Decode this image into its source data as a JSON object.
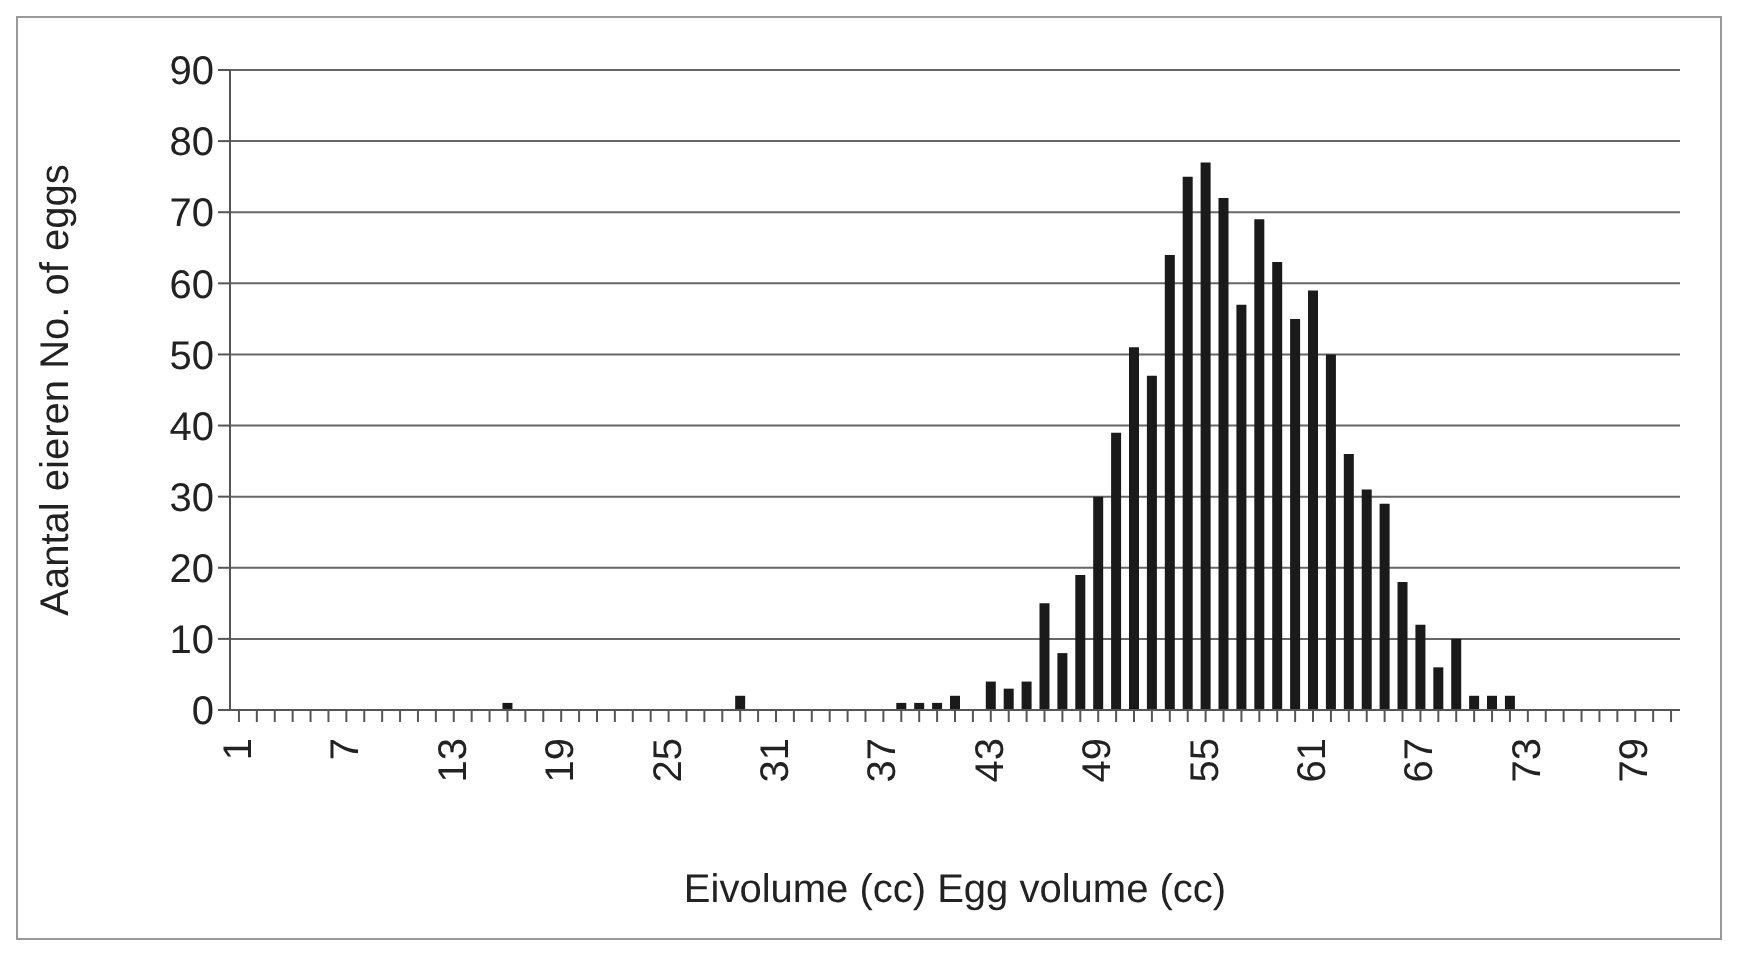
{
  "chart_data": {
    "type": "bar",
    "xlabel": "Eivolume (cc)  Egg volume (cc)",
    "ylabel": "Aantal eieren  No. of eggs",
    "categories": [
      "1",
      null,
      null,
      null,
      null,
      null,
      "7",
      null,
      null,
      null,
      null,
      null,
      "13",
      null,
      null,
      null,
      null,
      null,
      "19",
      null,
      null,
      null,
      null,
      null,
      "25",
      null,
      null,
      null,
      null,
      null,
      "31",
      null,
      null,
      null,
      null,
      null,
      "37",
      null,
      null,
      null,
      null,
      null,
      "43",
      null,
      null,
      null,
      null,
      null,
      "49",
      null,
      null,
      null,
      null,
      null,
      "55",
      null,
      null,
      null,
      null,
      null,
      "61",
      null,
      null,
      null,
      null,
      null,
      "67",
      null,
      null,
      null,
      null,
      null,
      "73",
      null,
      null,
      null,
      null,
      null,
      "79",
      null,
      null
    ],
    "values": [
      0,
      0,
      0,
      0,
      0,
      0,
      0,
      0,
      0,
      0,
      0,
      0,
      0,
      0,
      0,
      1,
      0,
      0,
      0,
      0,
      0,
      0,
      0,
      0,
      0,
      0,
      0,
      0,
      2,
      0,
      0,
      0,
      0,
      0,
      0,
      0,
      0,
      1,
      1,
      1,
      2,
      0,
      4,
      3,
      4,
      15,
      8,
      19,
      30,
      39,
      51,
      47,
      64,
      75,
      77,
      72,
      57,
      69,
      63,
      55,
      59,
      50,
      36,
      31,
      29,
      18,
      12,
      6,
      10,
      2,
      2,
      2,
      0,
      0,
      0,
      0,
      0,
      0,
      0,
      0,
      0
    ],
    "color": "#1a1a1a",
    "ylim": [
      0,
      90
    ],
    "yticks": [
      0,
      10,
      20,
      30,
      40,
      50,
      60,
      70,
      80,
      90
    ],
    "grid": "y"
  }
}
